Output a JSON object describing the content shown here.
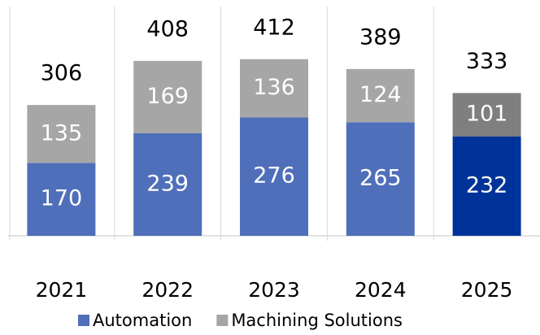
{
  "chart_data": {
    "type": "stacked_bar",
    "categories": [
      "2021",
      "2022",
      "2023",
      "2024",
      "2025"
    ],
    "series": [
      {
        "name": "Automation",
        "color": "#4f6fba",
        "colors": [
          "#4f6fba",
          "#4f6fba",
          "#4f6fba",
          "#4f6fba",
          "#003399"
        ],
        "values": [
          170,
          239,
          276,
          265,
          232
        ]
      },
      {
        "name": "Machining Solutions",
        "color": "#a6a6a6",
        "colors": [
          "#a6a6a6",
          "#a6a6a6",
          "#a6a6a6",
          "#a6a6a6",
          "#7f7f7f"
        ],
        "values": [
          135,
          169,
          136,
          124,
          101
        ]
      }
    ],
    "totals": [
      306,
      408,
      412,
      389,
      333
    ],
    "ylim": [
      0,
      550
    ]
  }
}
